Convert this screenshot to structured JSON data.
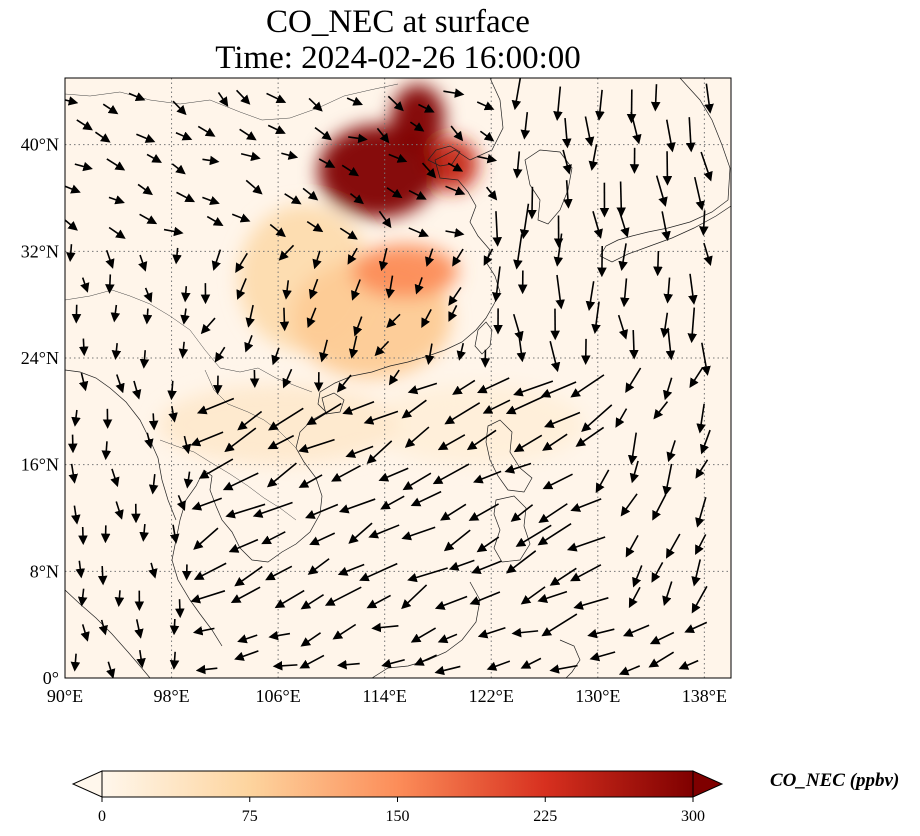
{
  "title": {
    "line1": "CO_NEC at surface",
    "line2": "Time: 2024-02-26 16:00:00"
  },
  "map": {
    "lon_range": [
      90,
      140
    ],
    "lat_range": [
      0,
      45
    ],
    "lon_ticks": [
      {
        "value": 90,
        "label": "90°E"
      },
      {
        "value": 98,
        "label": "98°E"
      },
      {
        "value": 106,
        "label": "106°E"
      },
      {
        "value": 114,
        "label": "114°E"
      },
      {
        "value": 122,
        "label": "122°E"
      },
      {
        "value": 130,
        "label": "130°E"
      },
      {
        "value": 138,
        "label": "138°E"
      }
    ],
    "lat_ticks": [
      {
        "value": 0,
        "label": "0°"
      },
      {
        "value": 8,
        "label": "8°N"
      },
      {
        "value": 16,
        "label": "16°N"
      },
      {
        "value": 24,
        "label": "24°N"
      },
      {
        "value": 32,
        "label": "32°N"
      },
      {
        "value": 40,
        "label": "40°N"
      }
    ],
    "gridlines": true,
    "coastlines": true
  },
  "colorbar": {
    "label": "CO_NEC (ppbv)",
    "min": 0,
    "max": 300,
    "extend": "both",
    "colormap": "OrRd",
    "ticks": [
      {
        "value": 0,
        "label": "0"
      },
      {
        "value": 75,
        "label": "75"
      },
      {
        "value": 150,
        "label": "150"
      },
      {
        "value": 225,
        "label": "225"
      },
      {
        "value": 300,
        "label": "300"
      }
    ],
    "colors": [
      "#fff7ec",
      "#fdd49e",
      "#fc8d59",
      "#d7301f",
      "#7f0000"
    ]
  },
  "field": {
    "plumes": [
      {
        "lon": 113.5,
        "lat": 38.0,
        "lon_radius": 4.5,
        "lat_radius": 3.5,
        "value": 300
      },
      {
        "lon": 116.5,
        "lat": 42.0,
        "lon_radius": 2.0,
        "lat_radius": 2.5,
        "value": 300
      },
      {
        "lon": 119.0,
        "lat": 38.5,
        "lon_radius": 2.0,
        "lat_radius": 2.0,
        "value": 240
      },
      {
        "lon": 115.5,
        "lat": 30.5,
        "lon_radius": 4.0,
        "lat_radius": 2.0,
        "value": 150
      },
      {
        "lon": 113.0,
        "lat": 27.0,
        "lon_radius": 6.0,
        "lat_radius": 4.5,
        "value": 85
      },
      {
        "lon": 108.0,
        "lat": 30.0,
        "lon_radius": 5.0,
        "lat_radius": 5.5,
        "value": 60
      },
      {
        "lon": 106.0,
        "lat": 19.0,
        "lon_radius": 9.0,
        "lat_radius": 3.0,
        "value": 30
      },
      {
        "lon": 121.0,
        "lat": 19.0,
        "lon_radius": 8.0,
        "lat_radius": 3.0,
        "value": 18
      }
    ]
  },
  "wind": {
    "regions": [
      {
        "name": "north-china",
        "lon": [
          90,
          122
        ],
        "lat": [
          33,
          45
        ],
        "u": 0.6,
        "v": -0.3,
        "speed": 0.35
      },
      {
        "name": "east-asia-north",
        "lon": [
          122,
          140
        ],
        "lat": [
          24,
          45
        ],
        "u": 0.05,
        "v": -1.0,
        "speed": 0.8
      },
      {
        "name": "south-china",
        "lon": [
          100,
          122
        ],
        "lat": [
          22,
          33
        ],
        "u": -0.2,
        "v": -0.6,
        "speed": 0.4
      },
      {
        "name": "south-china-sea",
        "lon": [
          100,
          130
        ],
        "lat": [
          4,
          22
        ],
        "u": -1.0,
        "v": -0.55,
        "speed": 1.0
      },
      {
        "name": "western-pacific",
        "lon": [
          122,
          140
        ],
        "lat": [
          4,
          24
        ],
        "u": -0.4,
        "v": -1.0,
        "speed": 0.7
      },
      {
        "name": "bay-of-bengal",
        "lon": [
          90,
          100
        ],
        "lat": [
          0,
          33
        ],
        "u": 0.1,
        "v": -1.0,
        "speed": 0.3
      },
      {
        "name": "equatorial",
        "lon": [
          90,
          140
        ],
        "lat": [
          0,
          4
        ],
        "u": -0.8,
        "v": -0.3,
        "speed": 0.6
      }
    ]
  }
}
